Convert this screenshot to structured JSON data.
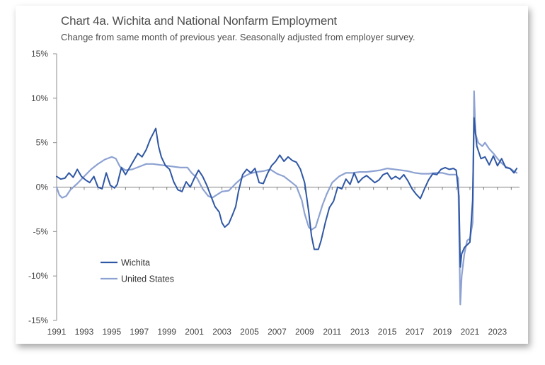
{
  "chart_data": {
    "type": "line",
    "title": "Chart 4a. Wichita and National Nonfarm Employment",
    "subtitle": "Change from same month of previous year. Seasonally adjusted from employer survey.",
    "xlabel": "",
    "ylabel": "",
    "xlim": [
      1991,
      2024.6
    ],
    "ylim": [
      -15,
      15
    ],
    "x_ticks": [
      "1991",
      "1993",
      "1995",
      "1997",
      "1999",
      "2001",
      "2003",
      "2005",
      "2007",
      "2009",
      "2011",
      "2013",
      "2015",
      "2017",
      "2019",
      "2021",
      "2023"
    ],
    "y_ticks": [
      "15%",
      "10%",
      "5%",
      "0%",
      "-5%",
      "-10%",
      "-15%"
    ],
    "y_tick_values": [
      15,
      10,
      5,
      0,
      -5,
      -10,
      -15
    ],
    "grid": false,
    "legend_position": "lower-left",
    "series": [
      {
        "name": "Wichita",
        "color": "#2f57a4",
        "points": [
          [
            1991.0,
            1.2
          ],
          [
            1991.3,
            0.9
          ],
          [
            1991.6,
            1.0
          ],
          [
            1991.9,
            1.6
          ],
          [
            1992.2,
            1.1
          ],
          [
            1992.5,
            2.0
          ],
          [
            1992.8,
            1.2
          ],
          [
            1993.1,
            0.8
          ],
          [
            1993.4,
            0.5
          ],
          [
            1993.7,
            1.2
          ],
          [
            1994.0,
            0.0
          ],
          [
            1994.3,
            -0.2
          ],
          [
            1994.6,
            1.6
          ],
          [
            1994.9,
            0.2
          ],
          [
            1995.2,
            -0.1
          ],
          [
            1995.4,
            0.3
          ],
          [
            1995.7,
            2.2
          ],
          [
            1996.0,
            1.4
          ],
          [
            1996.3,
            2.2
          ],
          [
            1996.6,
            3.0
          ],
          [
            1996.9,
            3.8
          ],
          [
            1997.2,
            3.4
          ],
          [
            1997.5,
            4.2
          ],
          [
            1997.8,
            5.4
          ],
          [
            1998.0,
            6.0
          ],
          [
            1998.2,
            6.6
          ],
          [
            1998.4,
            4.6
          ],
          [
            1998.6,
            3.4
          ],
          [
            1998.9,
            2.4
          ],
          [
            1999.2,
            2.0
          ],
          [
            1999.5,
            0.6
          ],
          [
            1999.8,
            -0.3
          ],
          [
            2000.1,
            -0.5
          ],
          [
            2000.4,
            0.6
          ],
          [
            2000.7,
            0.0
          ],
          [
            2001.0,
            1.0
          ],
          [
            2001.3,
            1.9
          ],
          [
            2001.6,
            1.2
          ],
          [
            2001.9,
            0.2
          ],
          [
            2002.2,
            -1.0
          ],
          [
            2002.5,
            -2.2
          ],
          [
            2002.8,
            -2.8
          ],
          [
            2003.0,
            -4.0
          ],
          [
            2003.2,
            -4.5
          ],
          [
            2003.5,
            -4.1
          ],
          [
            2003.8,
            -3.0
          ],
          [
            2004.0,
            -2.2
          ],
          [
            2004.2,
            -0.5
          ],
          [
            2004.5,
            1.4
          ],
          [
            2004.8,
            2.0
          ],
          [
            2005.1,
            1.6
          ],
          [
            2005.4,
            2.1
          ],
          [
            2005.7,
            0.5
          ],
          [
            2006.0,
            0.4
          ],
          [
            2006.3,
            1.5
          ],
          [
            2006.6,
            2.4
          ],
          [
            2006.9,
            2.9
          ],
          [
            2007.2,
            3.6
          ],
          [
            2007.5,
            2.9
          ],
          [
            2007.8,
            3.4
          ],
          [
            2008.1,
            3.0
          ],
          [
            2008.4,
            2.8
          ],
          [
            2008.7,
            2.0
          ],
          [
            2009.0,
            0.5
          ],
          [
            2009.3,
            -2.8
          ],
          [
            2009.5,
            -5.5
          ],
          [
            2009.7,
            -7.0
          ],
          [
            2010.0,
            -7.0
          ],
          [
            2010.2,
            -6.0
          ],
          [
            2010.5,
            -4.0
          ],
          [
            2010.8,
            -2.3
          ],
          [
            2011.1,
            -1.6
          ],
          [
            2011.4,
            0.0
          ],
          [
            2011.7,
            -0.2
          ],
          [
            2012.0,
            0.9
          ],
          [
            2012.3,
            0.3
          ],
          [
            2012.6,
            1.6
          ],
          [
            2012.9,
            0.5
          ],
          [
            2013.2,
            1.0
          ],
          [
            2013.5,
            1.3
          ],
          [
            2013.8,
            0.9
          ],
          [
            2014.1,
            0.5
          ],
          [
            2014.4,
            0.8
          ],
          [
            2014.7,
            1.4
          ],
          [
            2015.0,
            1.6
          ],
          [
            2015.3,
            0.9
          ],
          [
            2015.6,
            1.2
          ],
          [
            2015.9,
            0.9
          ],
          [
            2016.2,
            1.4
          ],
          [
            2016.5,
            0.7
          ],
          [
            2016.8,
            -0.2
          ],
          [
            2017.1,
            -0.8
          ],
          [
            2017.4,
            -1.3
          ],
          [
            2017.7,
            -0.2
          ],
          [
            2018.0,
            0.8
          ],
          [
            2018.3,
            1.5
          ],
          [
            2018.6,
            1.4
          ],
          [
            2018.9,
            2.0
          ],
          [
            2019.2,
            2.2
          ],
          [
            2019.5,
            2.0
          ],
          [
            2019.8,
            2.1
          ],
          [
            2020.0,
            1.9
          ],
          [
            2020.2,
            -1.0
          ],
          [
            2020.3,
            -9.0
          ],
          [
            2020.4,
            -7.5
          ],
          [
            2020.6,
            -6.8
          ],
          [
            2020.8,
            -6.5
          ],
          [
            2021.0,
            -6.2
          ],
          [
            2021.2,
            -1.5
          ],
          [
            2021.3,
            7.8
          ],
          [
            2021.5,
            4.6
          ],
          [
            2021.8,
            3.2
          ],
          [
            2022.1,
            3.4
          ],
          [
            2022.4,
            2.5
          ],
          [
            2022.7,
            3.5
          ],
          [
            2023.0,
            2.4
          ],
          [
            2023.3,
            3.2
          ],
          [
            2023.6,
            2.2
          ],
          [
            2023.9,
            2.1
          ],
          [
            2024.2,
            1.6
          ],
          [
            2024.4,
            2.1
          ]
        ]
      },
      {
        "name": "United States",
        "color": "#8da2d2",
        "points": [
          [
            1991.0,
            0.0
          ],
          [
            1991.2,
            -0.9
          ],
          [
            1991.4,
            -1.2
          ],
          [
            1991.7,
            -1.0
          ],
          [
            1992.0,
            -0.3
          ],
          [
            1992.5,
            0.4
          ],
          [
            1993.0,
            1.2
          ],
          [
            1993.5,
            2.0
          ],
          [
            1994.0,
            2.6
          ],
          [
            1994.5,
            3.1
          ],
          [
            1995.0,
            3.4
          ],
          [
            1995.3,
            3.2
          ],
          [
            1995.6,
            2.3
          ],
          [
            1996.0,
            1.9
          ],
          [
            1996.5,
            2.0
          ],
          [
            1997.0,
            2.3
          ],
          [
            1997.5,
            2.6
          ],
          [
            1998.0,
            2.6
          ],
          [
            1998.5,
            2.5
          ],
          [
            1999.0,
            2.4
          ],
          [
            1999.5,
            2.3
          ],
          [
            2000.0,
            2.2
          ],
          [
            2000.5,
            2.2
          ],
          [
            2000.8,
            1.6
          ],
          [
            2001.2,
            1.0
          ],
          [
            2001.6,
            -0.2
          ],
          [
            2002.0,
            -1.0
          ],
          [
            2002.3,
            -1.2
          ],
          [
            2002.7,
            -0.8
          ],
          [
            2003.0,
            -0.5
          ],
          [
            2003.5,
            -0.4
          ],
          [
            2004.0,
            0.4
          ],
          [
            2004.5,
            1.1
          ],
          [
            2005.0,
            1.5
          ],
          [
            2005.5,
            1.7
          ],
          [
            2006.0,
            1.8
          ],
          [
            2006.5,
            2.0
          ],
          [
            2007.0,
            1.5
          ],
          [
            2007.5,
            1.2
          ],
          [
            2008.0,
            0.6
          ],
          [
            2008.4,
            0.1
          ],
          [
            2008.8,
            -1.5
          ],
          [
            2009.0,
            -3.0
          ],
          [
            2009.3,
            -4.5
          ],
          [
            2009.5,
            -4.8
          ],
          [
            2009.8,
            -4.5
          ],
          [
            2010.0,
            -3.5
          ],
          [
            2010.3,
            -2.0
          ],
          [
            2010.6,
            -0.8
          ],
          [
            2011.0,
            0.5
          ],
          [
            2011.5,
            1.2
          ],
          [
            2012.0,
            1.6
          ],
          [
            2012.5,
            1.6
          ],
          [
            2013.0,
            1.7
          ],
          [
            2013.5,
            1.7
          ],
          [
            2014.0,
            1.8
          ],
          [
            2014.5,
            1.9
          ],
          [
            2015.0,
            2.1
          ],
          [
            2015.5,
            2.0
          ],
          [
            2016.0,
            1.9
          ],
          [
            2016.5,
            1.8
          ],
          [
            2017.0,
            1.6
          ],
          [
            2017.5,
            1.5
          ],
          [
            2018.0,
            1.5
          ],
          [
            2018.5,
            1.6
          ],
          [
            2019.0,
            1.6
          ],
          [
            2019.5,
            1.4
          ],
          [
            2020.0,
            1.4
          ],
          [
            2020.15,
            1.0
          ],
          [
            2020.3,
            -13.2
          ],
          [
            2020.4,
            -10.0
          ],
          [
            2020.6,
            -7.5
          ],
          [
            2020.8,
            -6.0
          ],
          [
            2021.0,
            -5.8
          ],
          [
            2021.2,
            -4.0
          ],
          [
            2021.3,
            10.8
          ],
          [
            2021.4,
            6.0
          ],
          [
            2021.6,
            5.0
          ],
          [
            2021.9,
            4.6
          ],
          [
            2022.1,
            5.0
          ],
          [
            2022.4,
            4.3
          ],
          [
            2022.7,
            3.8
          ],
          [
            2023.0,
            3.2
          ],
          [
            2023.3,
            2.7
          ],
          [
            2023.6,
            2.3
          ],
          [
            2023.9,
            2.1
          ],
          [
            2024.2,
            1.8
          ],
          [
            2024.4,
            1.6
          ]
        ]
      }
    ]
  }
}
